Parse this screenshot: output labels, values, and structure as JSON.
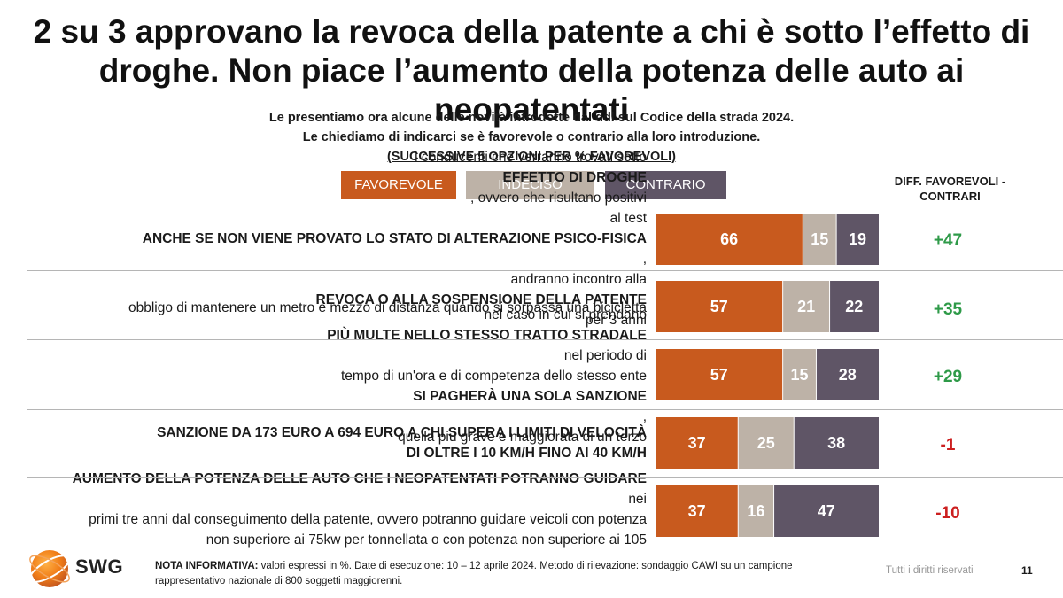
{
  "title_line1": "2 su 3 approvano la revoca della patente a chi è sotto l’effetto di",
  "title_line2": "droghe. Non piace l’aumento della potenza delle auto ai neopatentati",
  "subtitle_line1": "Le presentiamo ora alcune delle novità introdotte dal ddl sul Codice della strada 2024.",
  "subtitle_line2": "Le chiediamo di indicarci se è favorevole o contrario alla loro introduzione.",
  "subtitle_line3": "(SUCCESSIVE 5 OPZIONI PER % FAVOREVOLI)",
  "diff_header_line1": "DIFF. FAVOREVOLI -",
  "diff_header_line2": "CONTRARI",
  "colors": {
    "favorevole": "#c85a1e",
    "indeciso": "#bdb2a7",
    "contrario": "#5f5566"
  },
  "rows": [
    {
      "label": [
        "i conducenti che verranno trovati sotto ",
        "EFFETTO DI DROGHE",
        ", ovvero che risultano positivi",
        "al test ",
        "ANCHE SE NON VIENE PROVATO LO STATO DI ALTERAZIONE PSICO-FISICA",
        ",",
        "andranno incontro alla ",
        "REVOCA O ALLA SOSPENSIONE DELLA PATENTE",
        " per 3 anni"
      ],
      "diff": "+47"
    },
    {
      "label": [
        "obbligo di mantenere un metro e mezzo di distanza quando si sorpassa una bicicletta"
      ],
      "diff": "+35"
    },
    {
      "label": [
        "nel caso in cui si prendano ",
        "PIÙ MULTE NELLO STESSO TRATTO STRADALE",
        " nel periodo di",
        "tempo di un'ora e di competenza dello stesso ente ",
        "SI PAGHERÀ UNA SOLA SANZIONE",
        ",",
        "quella più grave e maggiorata di un terzo"
      ],
      "diff": "+29"
    },
    {
      "label": [
        "SANZIONE DA 173 EURO A 694 EURO A CHI SUPERA I LIMITI DI VELOCITÀ",
        "DI OLTRE I 10 KM/H FINO AI 40 KM/H"
      ],
      "diff": "-1"
    },
    {
      "label": [
        "AUMENTO DELLA POTENZA DELLE AUTO CHE I NEOPATENTATI POTRANNO GUIDARE",
        " nei",
        "primi tre anni dal conseguimento della patente, ovvero potranno guidare veicoli con potenza",
        "non superiore ai 75kw per tonnellata o con potenza non superiore ai 105"
      ],
      "diff": "-10"
    }
  ],
  "chart_data": {
    "type": "bar",
    "orientation": "horizontal-stacked-100",
    "categories": [
      "i conducenti che verranno trovati sotto EFFETTO DI DROGHE, ovvero che risultano positivi al test ANCHE SE NON VIENE PROVATO LO STATO DI ALTERAZIONE PSICO-FISICA, andranno incontro alla REVOCA O ALLA SOSPENSIONE DELLA PATENTE per 3 anni",
      "obbligo di mantenere un metro e mezzo di distanza quando si sorpassa una bicicletta",
      "nel caso in cui si prendano PIÙ MULTE NELLO STESSO TRATTO STRADALE nel periodo di tempo di un'ora e di competenza dello stesso ente SI PAGHERÀ UNA SOLA SANZIONE, quella più grave e maggiorata di un terzo",
      "SANZIONE DA 173 EURO A 694 EURO A CHI SUPERA I LIMITI DI VELOCITÀ DI OLTRE I 10 KM/H FINO AI 40 KM/H",
      "AUMENTO DELLA POTENZA DELLE AUTO CHE I NEOPATENTATI POTRANNO GUIDARE nei primi tre anni dal conseguimento della patente, ovvero potranno guidare veicoli con potenza non superiore ai 75kw per tonnellata o con potenza non superiore ai 105"
    ],
    "series": [
      {
        "name": "FAVOREVOLE",
        "values": [
          66,
          57,
          57,
          37,
          37
        ]
      },
      {
        "name": "INDECISO",
        "values": [
          15,
          21,
          15,
          25,
          16
        ]
      },
      {
        "name": "CONTRARIO",
        "values": [
          19,
          22,
          28,
          38,
          47
        ]
      }
    ],
    "diff_favorevoli_contrari": [
      "+47",
      "+35",
      "+29",
      "-1",
      "-10"
    ],
    "title": "2 su 3 approvano la revoca della patente a chi è sotto l’effetto di droghe. Non piace l’aumento della potenza delle auto ai neopatentati",
    "xlabel": "",
    "ylabel": "",
    "xlim": [
      0,
      100
    ],
    "legend": [
      "FAVOREVOLE",
      "INDECISO",
      "CONTRARIO"
    ],
    "legend_position": "top"
  },
  "footer": {
    "note_label": "NOTA INFORMATIVA:",
    "note_text": " valori espressi in %. Date di esecuzione: 10 – 12 aprile 2024. Metodo di rilevazione: sondaggio CAWI su un campione",
    "note_line2": "rappresentativo nazionale di 800 soggetti maggiorenni.",
    "rights": "Tutti i diritti riservati",
    "page": "11",
    "logo": "SWG"
  }
}
